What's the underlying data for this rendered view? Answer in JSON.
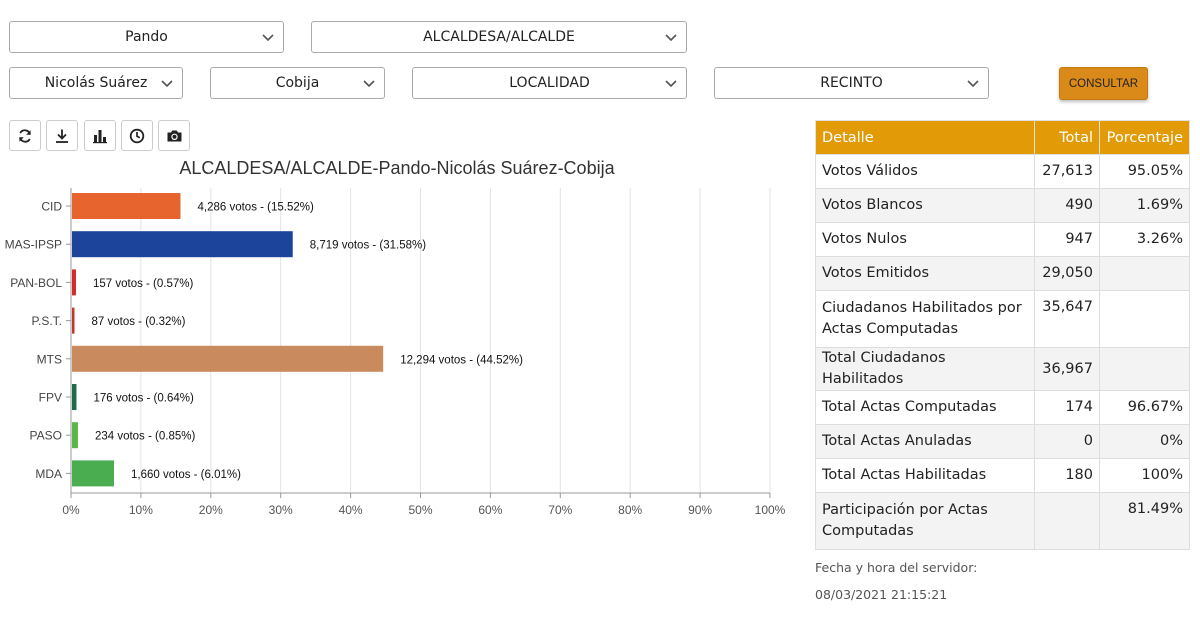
{
  "filters": {
    "departamento": "Pando",
    "cargo": "ALCALDESA/ALCALDE",
    "provincia": "Nicolás Suárez",
    "municipio": "Cobija",
    "localidad": "LOCALIDAD",
    "recinto": "RECINTO",
    "consult_label": "CONSULTAR"
  },
  "toolbar": {
    "icons": [
      "refresh-icon",
      "download-icon",
      "bar-chart-icon",
      "clock-icon",
      "camera-icon"
    ]
  },
  "chart_data": {
    "type": "bar",
    "orientation": "horizontal",
    "title": "ALCALDESA/ALCALDE-Pando-Nicolás Suárez-Cobija",
    "categories": [
      "CID",
      "MAS-IPSP",
      "PAN-BOL",
      "P.S.T.",
      "MTS",
      "FPV",
      "PASO",
      "MDA"
    ],
    "values": [
      15.52,
      31.58,
      0.57,
      0.32,
      44.52,
      0.64,
      0.85,
      6.01
    ],
    "labels": [
      "4,286 votos - (15.52%)",
      "8,719 votos - (31.58%)",
      "157 votos - (0.57%)",
      "87 votos - (0.32%)",
      "12,294 votos - (44.52%)",
      "176 votos - (0.64%)",
      "234 votos - (0.85%)",
      "1,660 votos - (6.01%)"
    ],
    "colors": [
      "#e8642e",
      "#1c449a",
      "#d42b2b",
      "#c0392b",
      "#c98a5e",
      "#1e6b4a",
      "#59b845",
      "#4aad4f"
    ],
    "xlim": [
      0,
      100
    ],
    "xticks": [
      "0%",
      "10%",
      "20%",
      "30%",
      "40%",
      "50%",
      "60%",
      "70%",
      "80%",
      "90%",
      "100%"
    ],
    "grid": true
  },
  "summary": {
    "headers": [
      "Detalle",
      "Total",
      "Porcentaje"
    ],
    "rows": [
      [
        "Votos Válidos",
        "27,613",
        "95.05%"
      ],
      [
        "Votos Blancos",
        "490",
        "1.69%"
      ],
      [
        "Votos Nulos",
        "947",
        "3.26%"
      ],
      [
        "Votos Emitidos",
        "29,050",
        ""
      ],
      [
        "Ciudadanos Habilitados por Actas Computadas",
        "35,647",
        ""
      ],
      [
        "Total Ciudadanos Habilitados",
        "36,967",
        ""
      ],
      [
        "Total Actas Computadas",
        "174",
        "96.67%"
      ],
      [
        "Total Actas Anuladas",
        "0",
        "0%"
      ],
      [
        "Total Actas Habilitadas",
        "180",
        "100%"
      ],
      [
        "Participación por Actas Computadas",
        "",
        "81.49%"
      ]
    ]
  },
  "server": {
    "label": "Fecha y hora del servidor:",
    "datetime": "08/03/2021 21:15:21"
  },
  "colors": {
    "accent": "#e39a07",
    "button": "#d98a19"
  }
}
